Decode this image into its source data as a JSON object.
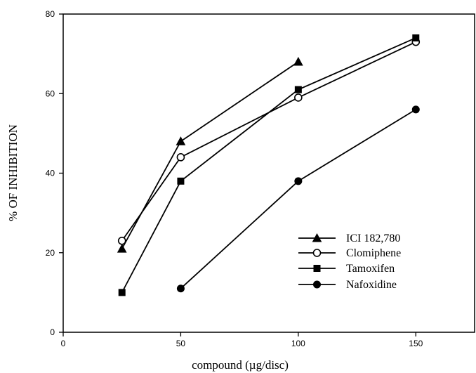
{
  "chart_data": {
    "type": "line",
    "xlabel": "compound (µg/disc)",
    "ylabel": "% OF INHIBITION",
    "xlim": [
      0,
      175
    ],
    "ylim": [
      0,
      80
    ],
    "xticks": [
      0,
      50,
      100,
      150
    ],
    "yticks": [
      0,
      20,
      40,
      60,
      80
    ],
    "grid": false,
    "legend_position": "bottom-right",
    "series": [
      {
        "name": "ICI 182,780",
        "marker": "filled-triangle",
        "x": [
          25,
          50,
          100
        ],
        "y": [
          21,
          48,
          68
        ]
      },
      {
        "name": "Clomiphene",
        "marker": "open-circle",
        "x": [
          25,
          50,
          100,
          150
        ],
        "y": [
          23,
          44,
          59,
          73
        ]
      },
      {
        "name": "Tamoxifen",
        "marker": "filled-square",
        "x": [
          25,
          50,
          100,
          150
        ],
        "y": [
          10,
          38,
          61,
          74
        ]
      },
      {
        "name": "Nafoxidine",
        "marker": "filled-circle",
        "x": [
          50,
          100,
          150
        ],
        "y": [
          11,
          38,
          56
        ]
      }
    ]
  }
}
